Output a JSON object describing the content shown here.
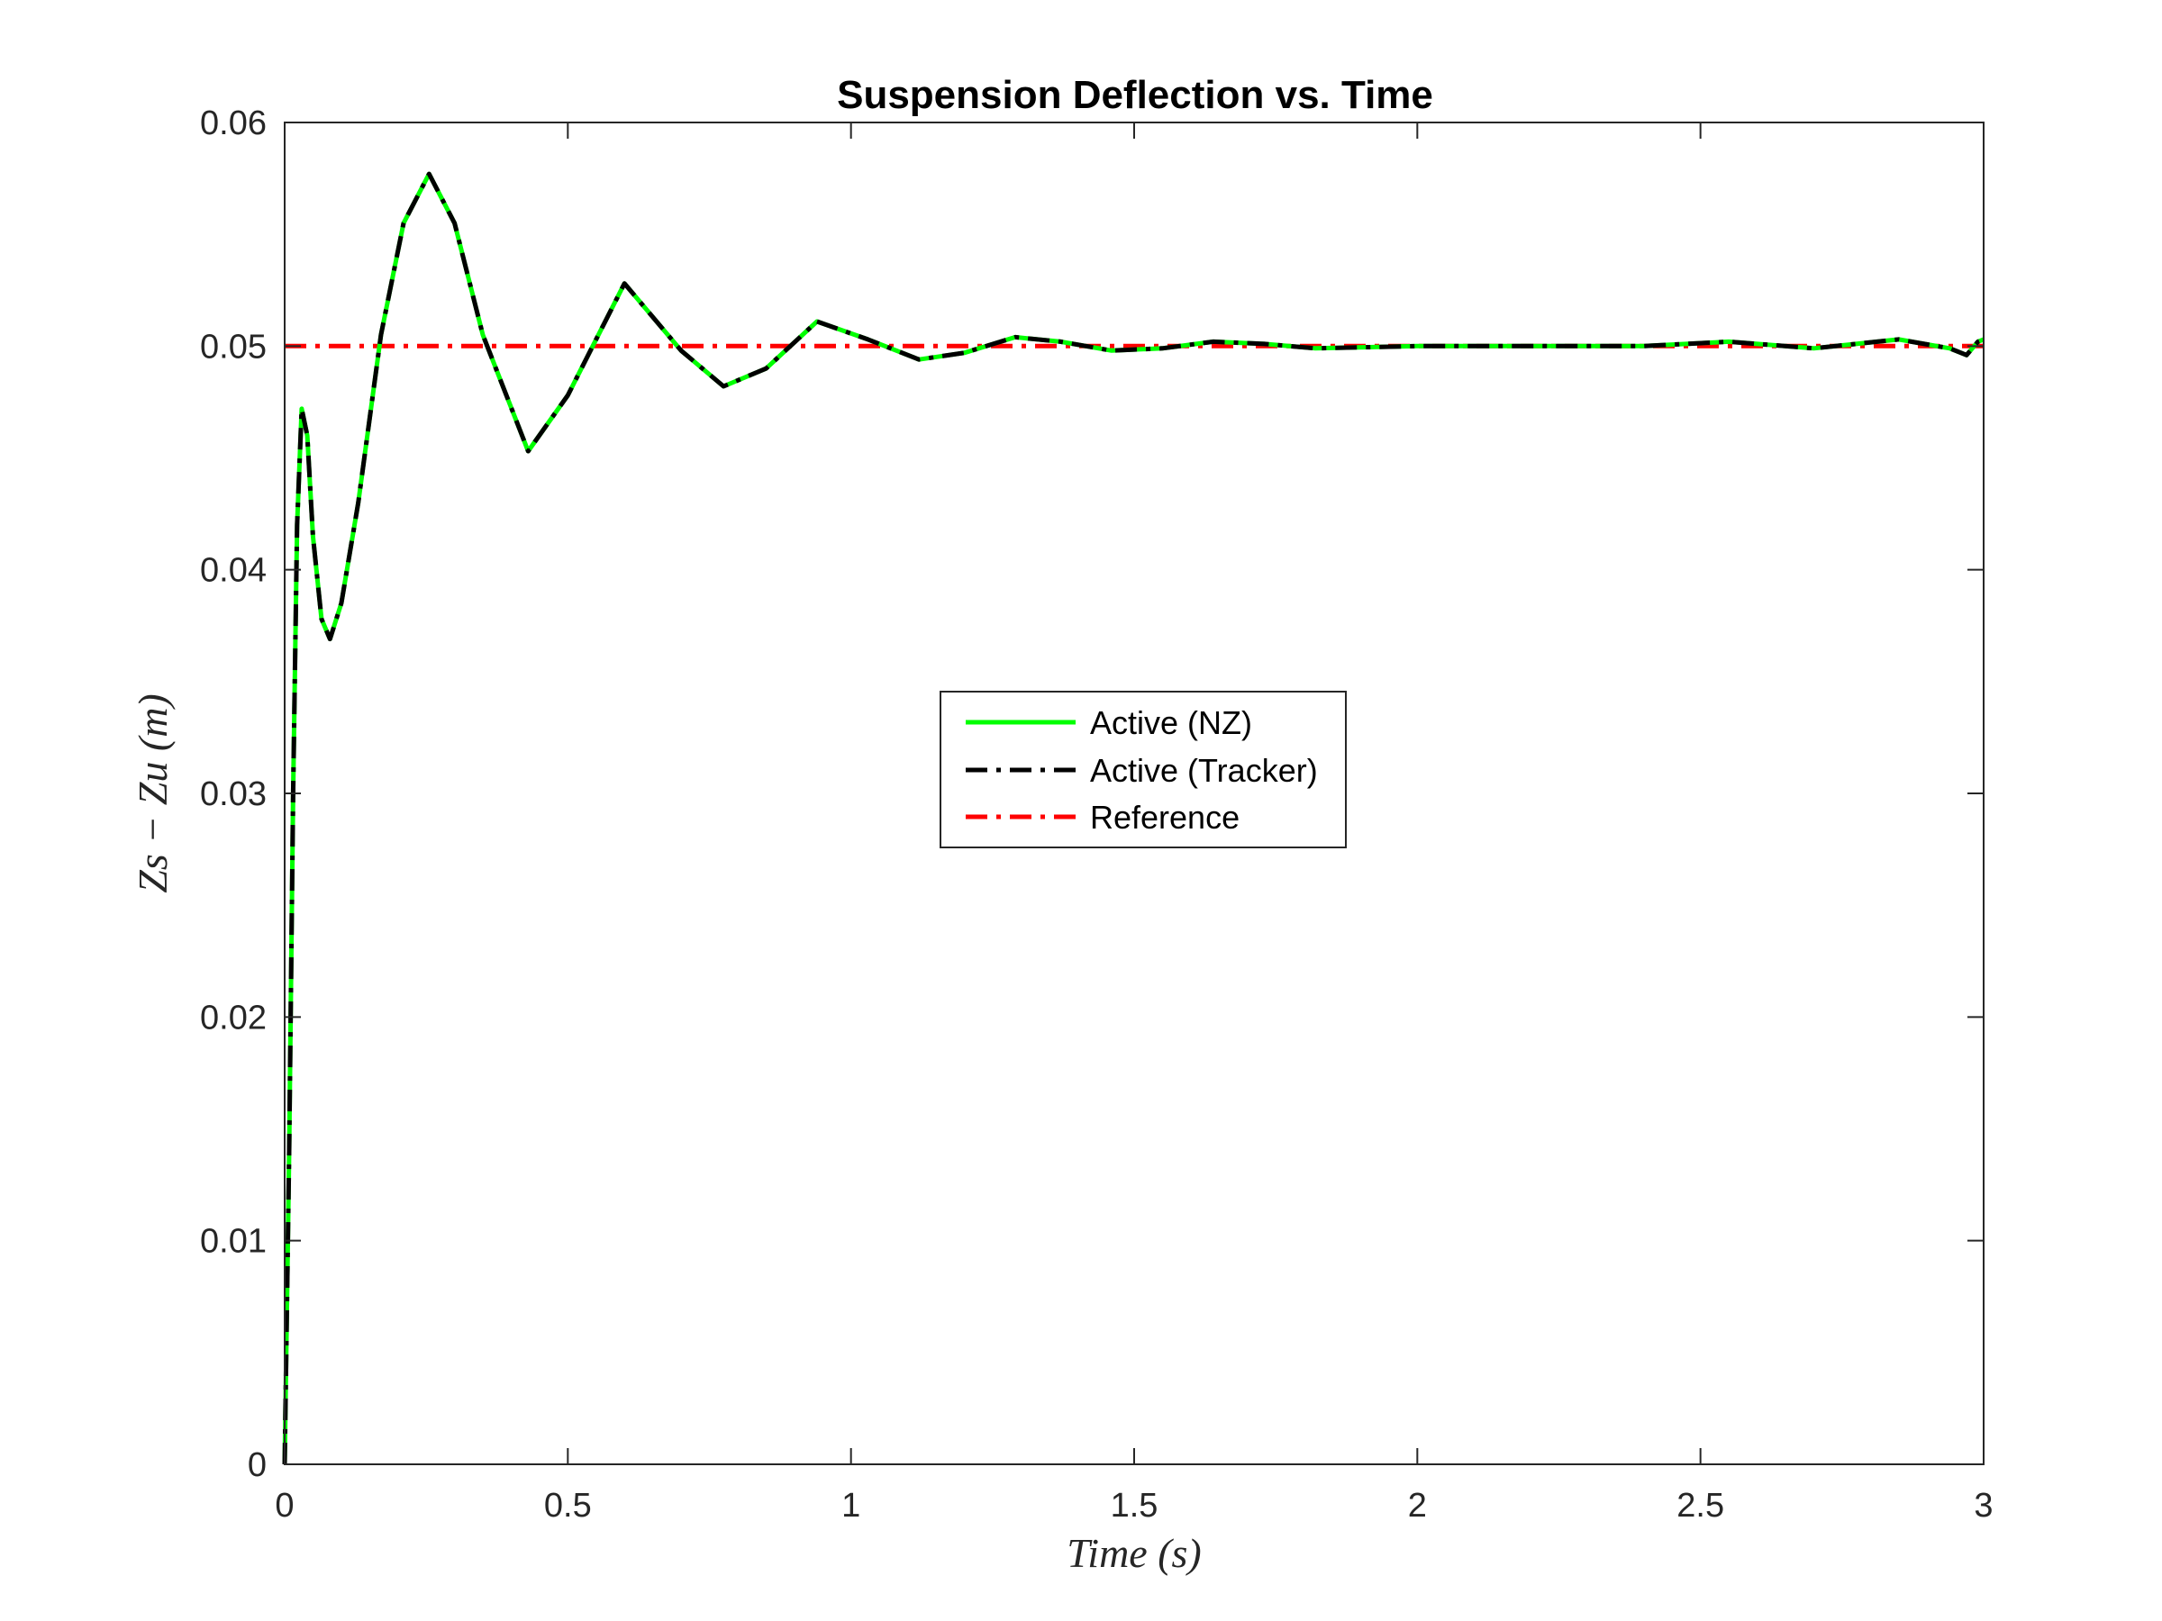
{
  "chart_data": {
    "type": "line",
    "title": "Suspension Deflection vs. Time",
    "xlabel": "Time (s)",
    "ylabel": "Zs − Zu (m)",
    "xlim": [
      0,
      3
    ],
    "ylim": [
      0,
      0.06
    ],
    "x_ticks": [
      "0",
      "0.5",
      "1",
      "1.5",
      "2",
      "2.5",
      "3"
    ],
    "y_ticks": [
      "0",
      "0.01",
      "0.02",
      "0.03",
      "0.04",
      "0.05",
      "0.06"
    ],
    "grid": false,
    "legend_position": "center",
    "series": [
      {
        "name": "Active (NZ)",
        "color": "#00ff00",
        "style": "solid",
        "x": [
          0,
          0.008,
          0.015,
          0.022,
          0.03,
          0.04,
          0.05,
          0.065,
          0.08,
          0.1,
          0.13,
          0.17,
          0.21,
          0.255,
          0.3,
          0.35,
          0.43,
          0.5,
          0.6,
          0.7,
          0.775,
          0.85,
          0.94,
          1.03,
          1.12,
          1.2,
          1.29,
          1.37,
          1.46,
          1.55,
          1.64,
          1.73,
          1.82,
          2.0,
          2.2,
          2.4,
          2.55,
          2.7,
          2.85,
          2.94,
          2.97,
          2.99,
          3.0
        ],
        "y": [
          0,
          0.014,
          0.03,
          0.042,
          0.0472,
          0.046,
          0.0415,
          0.0378,
          0.0369,
          0.0385,
          0.043,
          0.0505,
          0.0555,
          0.0577,
          0.0555,
          0.0505,
          0.0453,
          0.0478,
          0.0528,
          0.0498,
          0.0482,
          0.049,
          0.0511,
          0.0503,
          0.0494,
          0.0497,
          0.0504,
          0.0502,
          0.0498,
          0.0499,
          0.0502,
          0.0501,
          0.0499,
          0.05,
          0.05,
          0.05,
          0.0502,
          0.0499,
          0.0503,
          0.0499,
          0.0496,
          0.0502,
          0.0503
        ]
      },
      {
        "name": "Active (Tracker)",
        "color": "#000000",
        "style": "dash-dot",
        "x": [
          0,
          0.008,
          0.015,
          0.022,
          0.03,
          0.04,
          0.05,
          0.065,
          0.08,
          0.1,
          0.13,
          0.17,
          0.21,
          0.255,
          0.3,
          0.35,
          0.43,
          0.5,
          0.6,
          0.7,
          0.775,
          0.85,
          0.94,
          1.03,
          1.12,
          1.2,
          1.29,
          1.37,
          1.46,
          1.55,
          1.64,
          1.73,
          1.82,
          2.0,
          2.2,
          2.4,
          2.55,
          2.7,
          2.85,
          2.94,
          2.97,
          2.99,
          3.0
        ],
        "y": [
          0,
          0.014,
          0.03,
          0.042,
          0.0472,
          0.046,
          0.0415,
          0.0378,
          0.0369,
          0.0385,
          0.043,
          0.0505,
          0.0555,
          0.0577,
          0.0555,
          0.0505,
          0.0453,
          0.0478,
          0.0528,
          0.0498,
          0.0482,
          0.049,
          0.0511,
          0.0503,
          0.0494,
          0.0497,
          0.0504,
          0.0502,
          0.0498,
          0.0499,
          0.0502,
          0.0501,
          0.0499,
          0.05,
          0.05,
          0.05,
          0.0502,
          0.0499,
          0.0503,
          0.0499,
          0.0496,
          0.0502,
          0.0503
        ]
      },
      {
        "name": "Reference",
        "color": "#ff0000",
        "style": "dash-dot",
        "x": [
          0,
          3
        ],
        "y": [
          0.05,
          0.05
        ]
      }
    ]
  }
}
